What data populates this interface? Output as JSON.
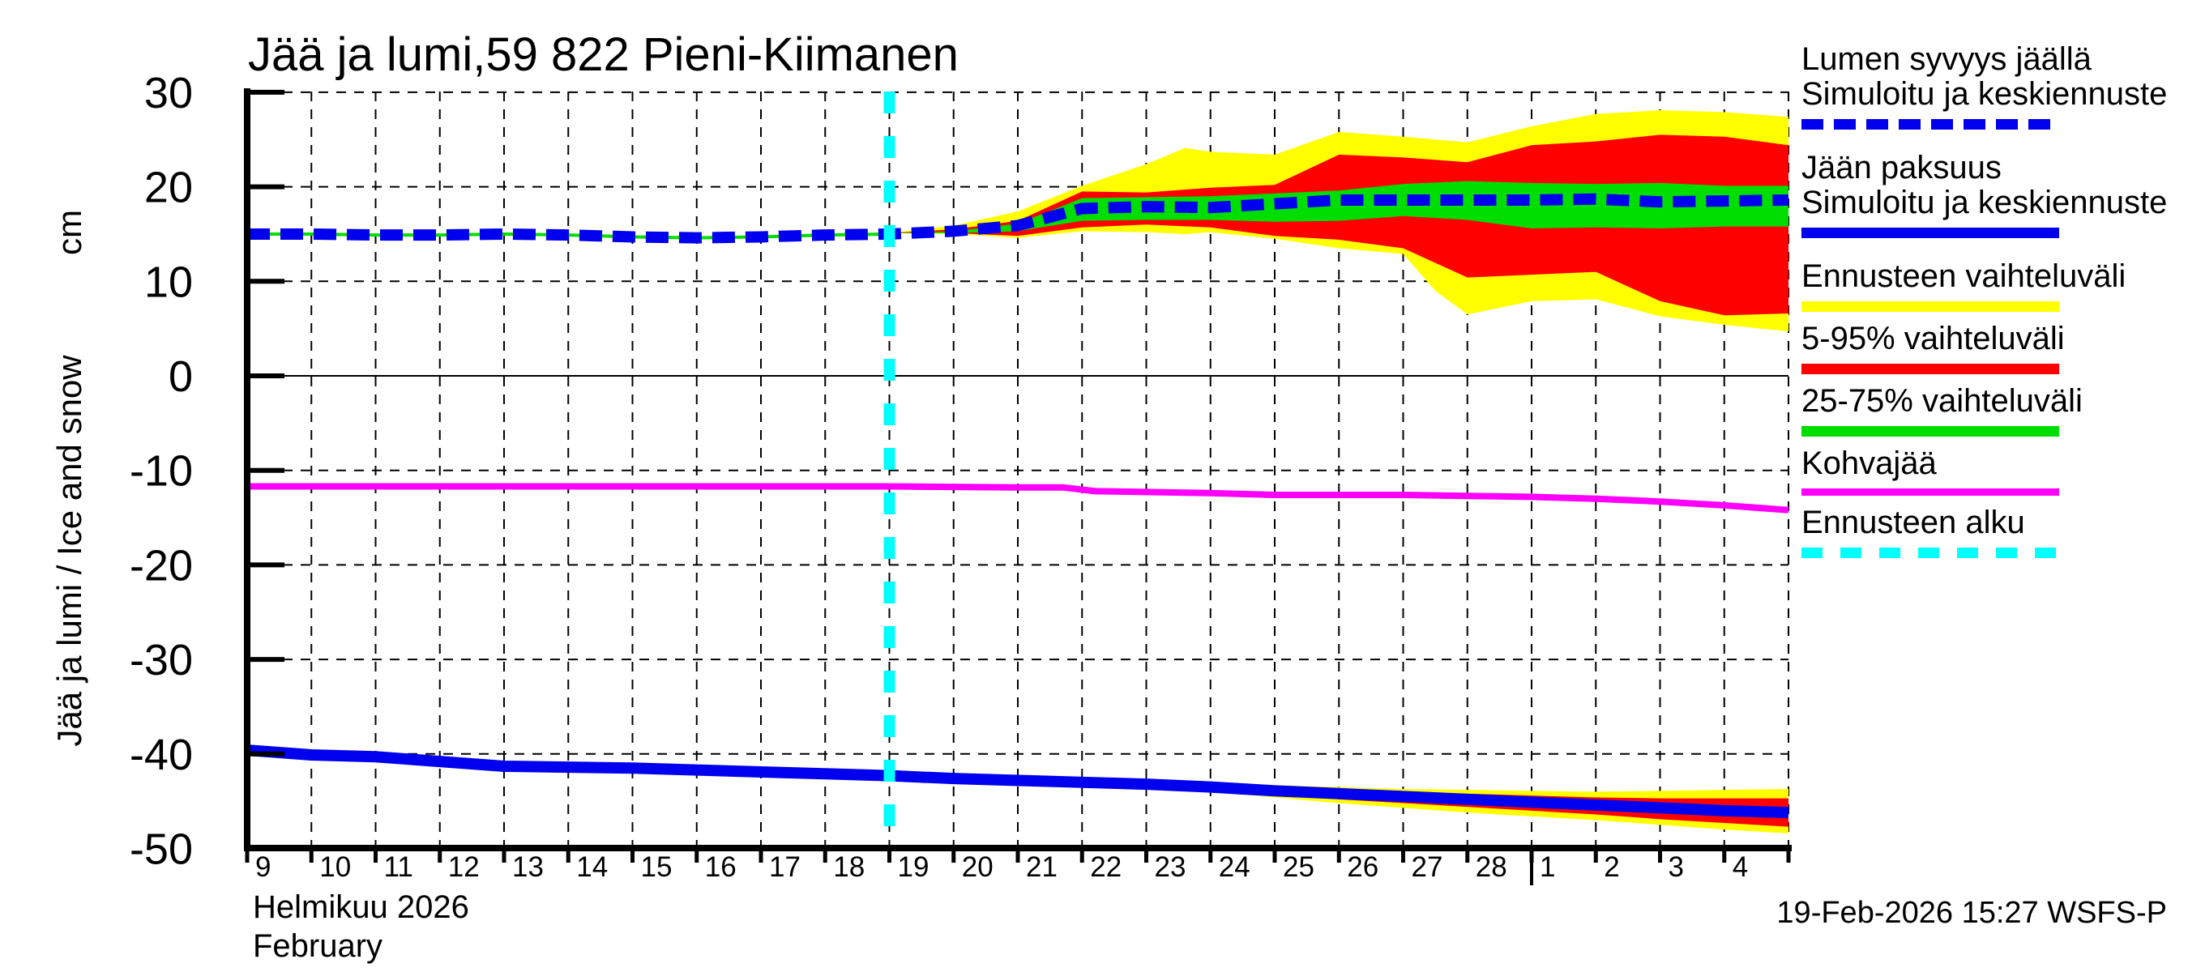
{
  "header": {
    "title": "Jää ja lumi,59 822 Pieni-Kiimanen"
  },
  "axes": {
    "y_label": "Jää ja lumi / Ice and snow",
    "y_unit": "cm",
    "x_month_fi": "Helmikuu 2026",
    "x_month_en": "February"
  },
  "footer": {
    "timestamp": "19-Feb-2026 15:27 WSFS-P"
  },
  "legend": {
    "items": [
      {
        "name": "snow-depth",
        "lines": [
          "Lumen syvyys jäällä",
          "Simuloitu ja keskiennuste"
        ],
        "swatch": "blue-dashed"
      },
      {
        "name": "ice-thickness",
        "lines": [
          "Jään paksuus",
          "Simuloitu ja keskiennuste"
        ],
        "swatch": "blue-solid"
      },
      {
        "name": "forecast-range",
        "lines": [
          "Ennusteen vaihteluväli"
        ],
        "swatch": "yellow"
      },
      {
        "name": "range-5-95",
        "lines": [
          "5-95% vaihteluväli"
        ],
        "swatch": "red"
      },
      {
        "name": "range-25-75",
        "lines": [
          "25-75% vaihteluväli"
        ],
        "swatch": "green"
      },
      {
        "name": "slush-ice",
        "lines": [
          "Kohvajää"
        ],
        "swatch": "magenta"
      },
      {
        "name": "forecast-start",
        "lines": [
          "Ennusteen alku"
        ],
        "swatch": "cyan-dashed"
      }
    ]
  },
  "chart_data": {
    "type": "line",
    "title": "Jää ja lumi,59 822 Pieni-Kiimanen",
    "ylabel": "Jää ja lumi / Ice and snow (cm)",
    "ylim": [
      -50,
      30
    ],
    "y_ticks": [
      30,
      20,
      10,
      0,
      -10,
      -20,
      -30,
      -40,
      -50
    ],
    "x_unit": "days since 2026-02-09 00:00 (Feb 9 ... Mar 4 2026)",
    "x_day_labels": [
      "9",
      "10",
      "11",
      "12",
      "13",
      "14",
      "15",
      "16",
      "17",
      "18",
      "19",
      "20",
      "21",
      "22",
      "23",
      "24",
      "25",
      "26",
      "27",
      "28",
      "1",
      "2",
      "3",
      "4"
    ],
    "month_boundary_offset": 20,
    "forecast_start_offset": 10,
    "grid": true,
    "legend_position": "right",
    "colors": {
      "blue": "#0000ee",
      "yellow": "#ffff00",
      "red": "#ff0000",
      "green": "#00dd00",
      "magenta": "#ff00ff",
      "cyan": "#00ffff",
      "axis": "#000000"
    },
    "bands": [
      {
        "name": "snow-forecast-range",
        "color": "yellow",
        "points": [
          [
            10,
            15.1,
            15.1
          ],
          [
            11,
            15.9,
            15.0
          ],
          [
            12,
            17.4,
            14.6
          ],
          [
            13,
            20.1,
            15.3
          ],
          [
            14,
            22.4,
            15.2
          ],
          [
            14.6,
            24.1,
            15.0
          ],
          [
            15,
            23.7,
            15.2
          ],
          [
            16,
            23.4,
            14.5
          ],
          [
            17,
            25.8,
            13.5
          ],
          [
            18,
            25.3,
            12.9
          ],
          [
            18.5,
            25.0,
            9.0
          ],
          [
            19,
            24.7,
            6.5
          ],
          [
            20,
            26.4,
            7.9
          ],
          [
            21,
            27.7,
            8.1
          ],
          [
            22,
            28.1,
            6.3
          ],
          [
            23,
            27.9,
            5.4
          ],
          [
            24,
            27.4,
            4.7
          ]
        ]
      },
      {
        "name": "snow-5-95",
        "color": "red",
        "points": [
          [
            10,
            15.1,
            15.1
          ],
          [
            11,
            15.5,
            15.1
          ],
          [
            12,
            16.4,
            14.8
          ],
          [
            13,
            19.5,
            15.7
          ],
          [
            14,
            19.4,
            16.0
          ],
          [
            15,
            19.9,
            15.7
          ],
          [
            16,
            20.2,
            14.8
          ],
          [
            17,
            23.4,
            14.4
          ],
          [
            18,
            23.1,
            13.5
          ],
          [
            19,
            22.6,
            10.4
          ],
          [
            20,
            24.4,
            10.7
          ],
          [
            21,
            24.8,
            11.0
          ],
          [
            22,
            25.5,
            7.9
          ],
          [
            23,
            25.3,
            6.4
          ],
          [
            24,
            24.4,
            6.6
          ]
        ]
      },
      {
        "name": "snow-25-75",
        "color": "green",
        "points": [
          [
            10,
            15.1,
            15.1
          ],
          [
            11,
            15.3,
            15.1
          ],
          [
            12,
            16.1,
            15.3
          ],
          [
            13,
            18.8,
            16.4
          ],
          [
            14,
            18.9,
            16.5
          ],
          [
            15,
            19.0,
            16.5
          ],
          [
            16,
            19.3,
            16.3
          ],
          [
            17,
            19.6,
            16.4
          ],
          [
            18,
            20.3,
            16.9
          ],
          [
            19,
            20.6,
            16.5
          ],
          [
            20,
            20.4,
            15.6
          ],
          [
            21,
            20.3,
            15.7
          ],
          [
            22,
            20.4,
            15.6
          ],
          [
            23,
            20.1,
            15.8
          ],
          [
            24,
            20.1,
            15.8
          ]
        ]
      },
      {
        "name": "ice-forecast-range",
        "color": "yellow",
        "points": [
          [
            13,
            -42.9,
            -43.1
          ],
          [
            14,
            -42.9,
            -43.5
          ],
          [
            15,
            -43.1,
            -44.0
          ],
          [
            16,
            -43.3,
            -44.6
          ],
          [
            17,
            -43.5,
            -45.2
          ],
          [
            18,
            -43.7,
            -45.7
          ],
          [
            19,
            -43.8,
            -46.2
          ],
          [
            20,
            -43.9,
            -46.6
          ],
          [
            21,
            -44.0,
            -47.0
          ],
          [
            22,
            -43.9,
            -47.5
          ],
          [
            23,
            -43.8,
            -48.0
          ],
          [
            24,
            -43.7,
            -48.4
          ]
        ]
      },
      {
        "name": "ice-5-95",
        "color": "red",
        "points": [
          [
            13,
            -42.9,
            -43.1
          ],
          [
            14,
            -43.0,
            -43.4
          ],
          [
            15,
            -43.3,
            -43.8
          ],
          [
            16,
            -43.5,
            -44.3
          ],
          [
            17,
            -43.8,
            -44.8
          ],
          [
            18,
            -44.0,
            -45.2
          ],
          [
            19,
            -44.2,
            -45.6
          ],
          [
            20,
            -44.4,
            -46.0
          ],
          [
            21,
            -44.6,
            -46.4
          ],
          [
            22,
            -44.7,
            -46.9
          ],
          [
            23,
            -44.7,
            -47.3
          ],
          [
            24,
            -44.7,
            -47.7
          ]
        ]
      },
      {
        "name": "ice-25-75",
        "color": "green",
        "points": [
          [
            15,
            -43.4,
            -43.6
          ],
          [
            16,
            -43.7,
            -44.1
          ],
          [
            17,
            -44.0,
            -44.5
          ],
          [
            18,
            -44.3,
            -44.8
          ],
          [
            19,
            -44.6,
            -45.1
          ],
          [
            20,
            -44.9,
            -45.4
          ],
          [
            21,
            -45.1,
            -45.7
          ],
          [
            22,
            -45.4,
            -46.0
          ],
          [
            23,
            -45.6,
            -46.4
          ],
          [
            24,
            -45.8,
            -46.7
          ]
        ]
      }
    ],
    "series": [
      {
        "name": "snow-history-band-collapsed",
        "legend": "25-75% vaihteluväli (historia)",
        "color": "green",
        "style": "solid",
        "width": 4,
        "points": [
          [
            0,
            15.0
          ],
          [
            1,
            15.0
          ],
          [
            2,
            14.9
          ],
          [
            3,
            14.9
          ],
          [
            4,
            15.0
          ],
          [
            5,
            14.9
          ],
          [
            6,
            14.7
          ],
          [
            7,
            14.6
          ],
          [
            8,
            14.7
          ],
          [
            9,
            14.9
          ],
          [
            10,
            15.0
          ]
        ]
      },
      {
        "name": "kohvajaa",
        "legend": "Kohvajää",
        "color": "magenta",
        "style": "solid",
        "width": 8,
        "points": [
          [
            0,
            -11.7
          ],
          [
            2,
            -11.7
          ],
          [
            4,
            -11.7
          ],
          [
            6,
            -11.7
          ],
          [
            8,
            -11.7
          ],
          [
            10,
            -11.7
          ],
          [
            12,
            -11.8
          ],
          [
            12.7,
            -11.8
          ],
          [
            13.2,
            -12.2
          ],
          [
            15,
            -12.4
          ],
          [
            16,
            -12.6
          ],
          [
            18,
            -12.6
          ],
          [
            19,
            -12.7
          ],
          [
            20,
            -12.8
          ],
          [
            21,
            -13.0
          ],
          [
            22,
            -13.3
          ],
          [
            23,
            -13.7
          ],
          [
            24,
            -14.2
          ]
        ]
      },
      {
        "name": "snow-depth-median",
        "legend": "Lumen syvyys jäällä — Simuloitu ja keskiennuste",
        "color": "blue",
        "style": "dashed",
        "width": 14,
        "points": [
          [
            0,
            15.0
          ],
          [
            1,
            15.0
          ],
          [
            2,
            14.9
          ],
          [
            3,
            14.9
          ],
          [
            4,
            15.0
          ],
          [
            5,
            14.9
          ],
          [
            6,
            14.7
          ],
          [
            7,
            14.6
          ],
          [
            8,
            14.7
          ],
          [
            9,
            14.9
          ],
          [
            10,
            15.0
          ],
          [
            11,
            15.3
          ],
          [
            12,
            15.9
          ],
          [
            12.5,
            16.8
          ],
          [
            13,
            17.7
          ],
          [
            14,
            17.9
          ],
          [
            15,
            17.8
          ],
          [
            16,
            18.2
          ],
          [
            17,
            18.6
          ],
          [
            18,
            18.6
          ],
          [
            19,
            18.6
          ],
          [
            20,
            18.6
          ],
          [
            21,
            18.7
          ],
          [
            22,
            18.4
          ],
          [
            23,
            18.5
          ],
          [
            24,
            18.6
          ]
        ]
      },
      {
        "name": "ice-thickness-median",
        "legend": "Jään paksuus — Simuloitu ja keskiennuste",
        "color": "blue",
        "style": "solid",
        "width": 14,
        "points": [
          [
            0,
            -39.6
          ],
          [
            1,
            -40.1
          ],
          [
            2,
            -40.3
          ],
          [
            3,
            -40.8
          ],
          [
            4,
            -41.3
          ],
          [
            5,
            -41.4
          ],
          [
            6,
            -41.5
          ],
          [
            7,
            -41.7
          ],
          [
            8,
            -41.9
          ],
          [
            9,
            -42.1
          ],
          [
            10,
            -42.3
          ],
          [
            11,
            -42.6
          ],
          [
            12,
            -42.8
          ],
          [
            13,
            -43.0
          ],
          [
            14,
            -43.2
          ],
          [
            15,
            -43.5
          ],
          [
            16,
            -43.9
          ],
          [
            17,
            -44.2
          ],
          [
            18,
            -44.5
          ],
          [
            19,
            -44.8
          ],
          [
            20,
            -45.1
          ],
          [
            21,
            -45.4
          ],
          [
            22,
            -45.7
          ],
          [
            23,
            -46.0
          ],
          [
            24,
            -46.2
          ]
        ]
      }
    ]
  }
}
